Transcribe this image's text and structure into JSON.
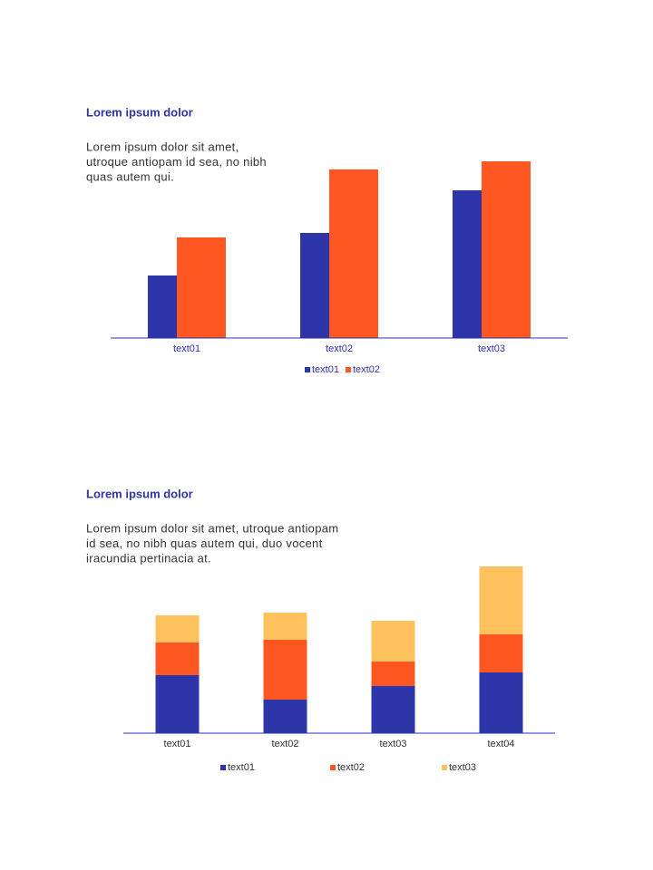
{
  "chart_data": [
    {
      "type": "bar",
      "stacked": false,
      "title": "Lorem ipsum dolor",
      "subtitle": [
        "Lorem ipsum dolor sit amet,",
        "utroque antiopam id sea, no nibh",
        "quas autem qui."
      ],
      "categories": [
        "text01",
        "text02",
        "text03"
      ],
      "series": [
        {
          "name": "text01",
          "color": "#2e35a8",
          "values": [
            69,
            116,
            163
          ]
        },
        {
          "name": "text02",
          "color": "#ff5722",
          "values": [
            111,
            186,
            195
          ]
        }
      ],
      "ylim": [
        0,
        200
      ]
    },
    {
      "type": "bar",
      "stacked": true,
      "title": "Lorem ipsum dolor",
      "subtitle": [
        "Lorem ipsum dolor sit amet, utroque antiopam",
        "id sea, no nibh quas autem qui, duo vocent",
        "iracundia pertinacia at."
      ],
      "categories": [
        "text01",
        "text02",
        "text03",
        "text04"
      ],
      "series": [
        {
          "name": "text01",
          "color": "#2e35a8",
          "values": [
            64,
            37,
            52,
            67
          ]
        },
        {
          "name": "text02",
          "color": "#ff5722",
          "values": [
            36,
            66,
            27,
            42
          ]
        },
        {
          "name": "text03",
          "color": "#ffc25c",
          "values": [
            30,
            30,
            45,
            75
          ]
        }
      ],
      "ylim": [
        0,
        200
      ]
    }
  ]
}
